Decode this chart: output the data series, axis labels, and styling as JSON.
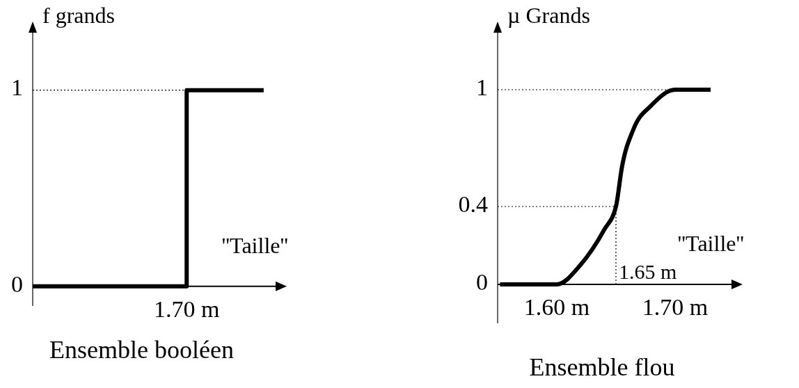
{
  "chart_data": [
    {
      "type": "step",
      "title": "Ensemble booléen",
      "xlabel": "''Taille''",
      "ylabel": "f grands",
      "categories": [
        null,
        null,
        "1.70 m",
        null
      ],
      "series": [
        {
          "color": "#000000",
          "values": [
            0,
            0,
            0,
            1
          ]
        }
      ],
      "ylim": [
        -0.1,
        1.3
      ],
      "yticks": [
        0,
        1
      ],
      "ref_lines": [
        {
          "axis": "y",
          "value": 1,
          "line_style": "dotted"
        }
      ],
      "grid": false
    },
    {
      "type": "line",
      "title": "Ensemble flou",
      "xlabel": "''Taille''",
      "ylabel": "µ Grands",
      "series": [
        {
          "color": "#000000",
          "x": [
            1.552,
            1.6,
            1.62,
            1.64,
            1.65,
            1.655,
            1.665,
            1.68,
            1.7,
            1.73
          ],
          "values": [
            0,
            0,
            0.1,
            0.28,
            0.4,
            0.6,
            0.8,
            0.92,
            1,
            1
          ]
        }
      ],
      "xlim": [
        1.55,
        1.75
      ],
      "xticks": [
        {
          "value": 1.6,
          "label": "1.60 m"
        },
        {
          "value": 1.7,
          "label": "1.70 m"
        }
      ],
      "ylim": [
        -0.2,
        1.3
      ],
      "yticks": [
        0,
        0.4,
        1
      ],
      "ref_lines": [
        {
          "axis": "y",
          "value": 1,
          "line_style": "dotted"
        },
        {
          "axis": "y",
          "value": 0.4,
          "line_style": "dotted"
        },
        {
          "axis": "x",
          "value": 1.65,
          "label": "1.65 m",
          "line_style": "dotted"
        }
      ],
      "grid": false
    }
  ]
}
